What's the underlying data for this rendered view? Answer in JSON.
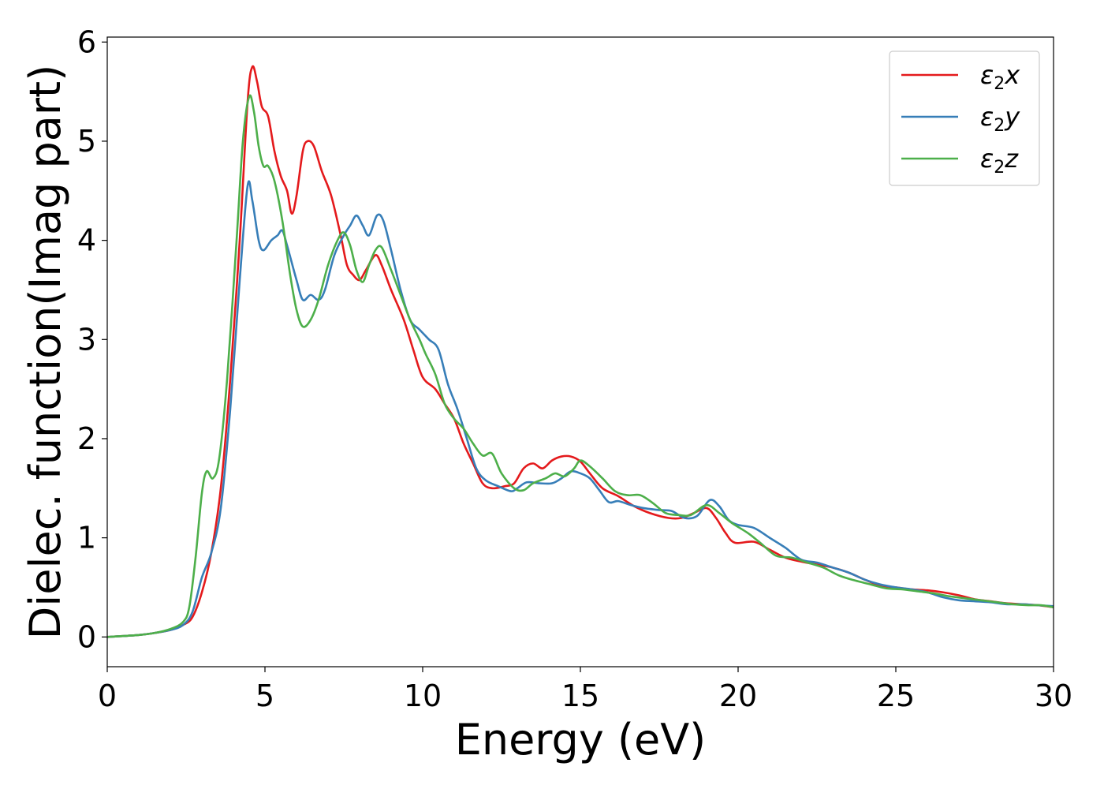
{
  "chart_data": {
    "type": "line",
    "title": "",
    "xlabel": "Energy (eV)",
    "ylabel": "Dielec. function(Imag part)",
    "xlim": [
      0,
      30
    ],
    "ylim": [
      -0.3,
      6.05
    ],
    "xticks": [
      0,
      5,
      10,
      15,
      20,
      25,
      30
    ],
    "xtick_labels": [
      "0",
      "5",
      "10",
      "15",
      "20",
      "25",
      "30"
    ],
    "yticks": [
      0,
      1,
      2,
      3,
      4,
      5,
      6
    ],
    "ytick_labels": [
      "0",
      "1",
      "2",
      "3",
      "4",
      "5",
      "6"
    ],
    "grid": false,
    "legend_position": "top-right",
    "series": [
      {
        "name": "ε2x",
        "legend_main": "ε",
        "legend_sub": "2",
        "legend_suffix": "x",
        "color": "#e41a1c",
        "points": [
          [
            0,
            0
          ],
          [
            1,
            0.02
          ],
          [
            1.5,
            0.04
          ],
          [
            2,
            0.07
          ],
          [
            2.4,
            0.12
          ],
          [
            2.7,
            0.2
          ],
          [
            3.0,
            0.45
          ],
          [
            3.3,
            0.85
          ],
          [
            3.6,
            1.5
          ],
          [
            3.9,
            2.6
          ],
          [
            4.2,
            4.0
          ],
          [
            4.45,
            5.4
          ],
          [
            4.6,
            5.75
          ],
          [
            4.75,
            5.6
          ],
          [
            4.9,
            5.35
          ],
          [
            5.1,
            5.25
          ],
          [
            5.3,
            4.9
          ],
          [
            5.5,
            4.65
          ],
          [
            5.7,
            4.5
          ],
          [
            5.85,
            4.27
          ],
          [
            6.0,
            4.45
          ],
          [
            6.2,
            4.9
          ],
          [
            6.35,
            5.0
          ],
          [
            6.55,
            4.95
          ],
          [
            6.8,
            4.7
          ],
          [
            7.1,
            4.45
          ],
          [
            7.4,
            4.05
          ],
          [
            7.6,
            3.75
          ],
          [
            7.8,
            3.65
          ],
          [
            8.0,
            3.6
          ],
          [
            8.2,
            3.7
          ],
          [
            8.5,
            3.85
          ],
          [
            8.7,
            3.75
          ],
          [
            9.0,
            3.5
          ],
          [
            9.4,
            3.2
          ],
          [
            9.7,
            2.9
          ],
          [
            10.0,
            2.62
          ],
          [
            10.4,
            2.5
          ],
          [
            10.7,
            2.35
          ],
          [
            11.0,
            2.2
          ],
          [
            11.3,
            1.95
          ],
          [
            11.6,
            1.75
          ],
          [
            11.9,
            1.55
          ],
          [
            12.2,
            1.5
          ],
          [
            12.6,
            1.52
          ],
          [
            12.9,
            1.55
          ],
          [
            13.2,
            1.7
          ],
          [
            13.5,
            1.75
          ],
          [
            13.8,
            1.7
          ],
          [
            14.1,
            1.78
          ],
          [
            14.4,
            1.82
          ],
          [
            14.7,
            1.82
          ],
          [
            15.0,
            1.77
          ],
          [
            15.3,
            1.65
          ],
          [
            15.7,
            1.5
          ],
          [
            16.2,
            1.42
          ],
          [
            16.7,
            1.32
          ],
          [
            17.2,
            1.25
          ],
          [
            17.8,
            1.2
          ],
          [
            18.2,
            1.2
          ],
          [
            18.6,
            1.25
          ],
          [
            19.0,
            1.3
          ],
          [
            19.3,
            1.2
          ],
          [
            19.6,
            1.05
          ],
          [
            19.9,
            0.95
          ],
          [
            20.5,
            0.96
          ],
          [
            21.0,
            0.88
          ],
          [
            21.5,
            0.8
          ],
          [
            22.0,
            0.76
          ],
          [
            22.5,
            0.73
          ],
          [
            23.0,
            0.7
          ],
          [
            23.5,
            0.65
          ],
          [
            24.0,
            0.58
          ],
          [
            24.5,
            0.52
          ],
          [
            25.0,
            0.5
          ],
          [
            25.5,
            0.48
          ],
          [
            26.0,
            0.47
          ],
          [
            26.5,
            0.45
          ],
          [
            27.0,
            0.42
          ],
          [
            27.5,
            0.38
          ],
          [
            28.0,
            0.36
          ],
          [
            28.5,
            0.34
          ],
          [
            29.0,
            0.33
          ],
          [
            29.5,
            0.32
          ],
          [
            30,
            0.3
          ]
        ]
      },
      {
        "name": "ε2y",
        "legend_main": "ε",
        "legend_sub": "2",
        "legend_suffix": "y",
        "color": "#377eb8",
        "points": [
          [
            0,
            0
          ],
          [
            1,
            0.02
          ],
          [
            1.5,
            0.04
          ],
          [
            2,
            0.07
          ],
          [
            2.4,
            0.12
          ],
          [
            2.7,
            0.25
          ],
          [
            3.0,
            0.6
          ],
          [
            3.3,
            0.85
          ],
          [
            3.6,
            1.3
          ],
          [
            3.9,
            2.3
          ],
          [
            4.2,
            3.6
          ],
          [
            4.45,
            4.55
          ],
          [
            4.6,
            4.4
          ],
          [
            4.8,
            4.0
          ],
          [
            4.95,
            3.9
          ],
          [
            5.2,
            4.0
          ],
          [
            5.4,
            4.05
          ],
          [
            5.55,
            4.1
          ],
          [
            5.7,
            3.95
          ],
          [
            6.0,
            3.6
          ],
          [
            6.2,
            3.4
          ],
          [
            6.45,
            3.45
          ],
          [
            6.7,
            3.4
          ],
          [
            6.9,
            3.5
          ],
          [
            7.2,
            3.85
          ],
          [
            7.5,
            4.05
          ],
          [
            7.7,
            4.15
          ],
          [
            7.9,
            4.25
          ],
          [
            8.1,
            4.15
          ],
          [
            8.3,
            4.05
          ],
          [
            8.55,
            4.25
          ],
          [
            8.75,
            4.2
          ],
          [
            9.0,
            3.9
          ],
          [
            9.3,
            3.5
          ],
          [
            9.6,
            3.2
          ],
          [
            9.9,
            3.1
          ],
          [
            10.2,
            3.0
          ],
          [
            10.5,
            2.9
          ],
          [
            10.8,
            2.55
          ],
          [
            11.1,
            2.3
          ],
          [
            11.4,
            2.0
          ],
          [
            11.7,
            1.7
          ],
          [
            12.0,
            1.58
          ],
          [
            12.4,
            1.52
          ],
          [
            12.8,
            1.47
          ],
          [
            13.0,
            1.5
          ],
          [
            13.3,
            1.56
          ],
          [
            13.7,
            1.55
          ],
          [
            14.1,
            1.55
          ],
          [
            14.4,
            1.6
          ],
          [
            14.7,
            1.67
          ],
          [
            15.0,
            1.65
          ],
          [
            15.3,
            1.6
          ],
          [
            15.6,
            1.48
          ],
          [
            15.9,
            1.36
          ],
          [
            16.2,
            1.37
          ],
          [
            16.6,
            1.33
          ],
          [
            17.0,
            1.3
          ],
          [
            17.5,
            1.28
          ],
          [
            17.9,
            1.27
          ],
          [
            18.3,
            1.2
          ],
          [
            18.7,
            1.22
          ],
          [
            19.1,
            1.38
          ],
          [
            19.4,
            1.32
          ],
          [
            19.7,
            1.18
          ],
          [
            20.0,
            1.13
          ],
          [
            20.5,
            1.1
          ],
          [
            21.0,
            1.0
          ],
          [
            21.5,
            0.9
          ],
          [
            22.0,
            0.78
          ],
          [
            22.5,
            0.75
          ],
          [
            23.0,
            0.7
          ],
          [
            23.5,
            0.65
          ],
          [
            24.0,
            0.58
          ],
          [
            24.5,
            0.53
          ],
          [
            25.0,
            0.5
          ],
          [
            25.5,
            0.48
          ],
          [
            26.0,
            0.45
          ],
          [
            26.5,
            0.4
          ],
          [
            27.0,
            0.37
          ],
          [
            27.5,
            0.36
          ],
          [
            28.0,
            0.35
          ],
          [
            28.5,
            0.33
          ],
          [
            29.0,
            0.33
          ],
          [
            29.5,
            0.32
          ],
          [
            30,
            0.31
          ]
        ]
      },
      {
        "name": "ε2z",
        "legend_main": "ε",
        "legend_sub": "2",
        "legend_suffix": "z",
        "color": "#4daf4a",
        "points": [
          [
            0,
            0
          ],
          [
            1,
            0.02
          ],
          [
            1.5,
            0.04
          ],
          [
            2,
            0.08
          ],
          [
            2.4,
            0.15
          ],
          [
            2.6,
            0.3
          ],
          [
            2.8,
            0.8
          ],
          [
            3.0,
            1.45
          ],
          [
            3.15,
            1.67
          ],
          [
            3.35,
            1.6
          ],
          [
            3.55,
            1.8
          ],
          [
            3.8,
            2.6
          ],
          [
            4.1,
            4.0
          ],
          [
            4.3,
            5.0
          ],
          [
            4.5,
            5.45
          ],
          [
            4.65,
            5.3
          ],
          [
            4.8,
            4.95
          ],
          [
            4.95,
            4.75
          ],
          [
            5.1,
            4.75
          ],
          [
            5.3,
            4.6
          ],
          [
            5.55,
            4.2
          ],
          [
            5.8,
            3.65
          ],
          [
            6.0,
            3.3
          ],
          [
            6.2,
            3.13
          ],
          [
            6.45,
            3.2
          ],
          [
            6.7,
            3.4
          ],
          [
            7.0,
            3.75
          ],
          [
            7.3,
            4.0
          ],
          [
            7.5,
            4.08
          ],
          [
            7.7,
            3.95
          ],
          [
            7.9,
            3.7
          ],
          [
            8.1,
            3.58
          ],
          [
            8.3,
            3.75
          ],
          [
            8.5,
            3.9
          ],
          [
            8.7,
            3.93
          ],
          [
            9.0,
            3.7
          ],
          [
            9.3,
            3.45
          ],
          [
            9.6,
            3.2
          ],
          [
            9.9,
            3.0
          ],
          [
            10.1,
            2.85
          ],
          [
            10.4,
            2.65
          ],
          [
            10.7,
            2.35
          ],
          [
            11.0,
            2.2
          ],
          [
            11.3,
            2.1
          ],
          [
            11.6,
            1.95
          ],
          [
            11.9,
            1.83
          ],
          [
            12.2,
            1.85
          ],
          [
            12.5,
            1.65
          ],
          [
            12.9,
            1.5
          ],
          [
            13.2,
            1.48
          ],
          [
            13.5,
            1.55
          ],
          [
            13.9,
            1.6
          ],
          [
            14.2,
            1.65
          ],
          [
            14.5,
            1.62
          ],
          [
            14.8,
            1.7
          ],
          [
            15.0,
            1.78
          ],
          [
            15.3,
            1.72
          ],
          [
            15.7,
            1.6
          ],
          [
            16.1,
            1.47
          ],
          [
            16.5,
            1.43
          ],
          [
            16.9,
            1.43
          ],
          [
            17.3,
            1.35
          ],
          [
            17.7,
            1.25
          ],
          [
            18.1,
            1.23
          ],
          [
            18.5,
            1.23
          ],
          [
            19.0,
            1.33
          ],
          [
            19.4,
            1.25
          ],
          [
            19.8,
            1.15
          ],
          [
            20.3,
            1.05
          ],
          [
            20.7,
            0.95
          ],
          [
            21.2,
            0.82
          ],
          [
            21.7,
            0.8
          ],
          [
            22.2,
            0.75
          ],
          [
            22.7,
            0.7
          ],
          [
            23.2,
            0.62
          ],
          [
            23.7,
            0.57
          ],
          [
            24.2,
            0.53
          ],
          [
            24.7,
            0.49
          ],
          [
            25.2,
            0.48
          ],
          [
            25.7,
            0.46
          ],
          [
            26.2,
            0.44
          ],
          [
            26.7,
            0.41
          ],
          [
            27.2,
            0.39
          ],
          [
            27.7,
            0.37
          ],
          [
            28.2,
            0.35
          ],
          [
            28.7,
            0.33
          ],
          [
            29.2,
            0.32
          ],
          [
            29.6,
            0.32
          ],
          [
            30,
            0.3
          ]
        ]
      }
    ]
  }
}
